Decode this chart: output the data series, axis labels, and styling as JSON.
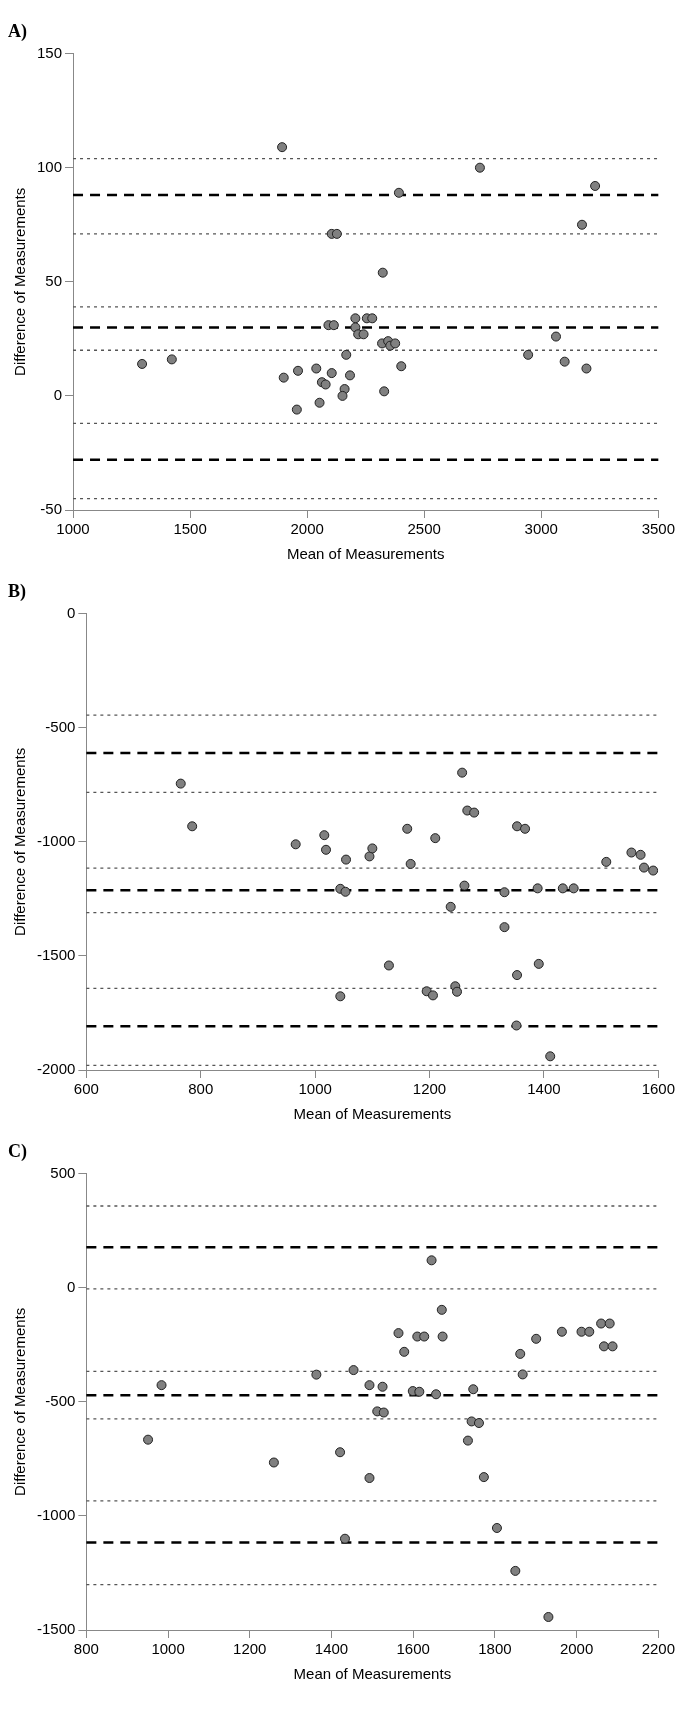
{
  "chart_data": [
    {
      "type": "scatter",
      "title": "A)",
      "xlabel": "Mean of Measurements",
      "ylabel": "Difference of Measurements",
      "xlim": [
        1000,
        3500
      ],
      "xticks": [
        1000,
        1500,
        2000,
        2500,
        3000,
        3500
      ],
      "ylim": [
        -50,
        150
      ],
      "yticks": [
        -50,
        0,
        50,
        100,
        150
      ],
      "grid": false,
      "legend": false,
      "marker": "circle",
      "series": [
        {
          "color": "#808080",
          "x": [
            1893,
            2738,
            2392,
            3230,
            3174,
            2105,
            2127,
            2323,
            2206,
            2255,
            2278,
            2091,
            2114,
            2206,
            2218,
            2241,
            2320,
            2346,
            2355,
            2376,
            3063,
            2167,
            2944,
            1295,
            1422,
            2402,
            3100,
            3193,
            1961,
            1900,
            2039,
            2105,
            2183,
            2063,
            2079,
            2160,
            2151,
            2329,
            2053,
            1956
          ],
          "values": [
            109,
            100,
            89,
            92,
            75,
            71,
            71,
            54,
            34,
            34,
            34,
            31,
            31,
            30,
            27,
            27,
            23,
            24,
            22,
            23,
            26,
            18,
            18,
            14,
            16,
            13,
            15,
            12,
            11,
            8,
            12,
            10,
            9,
            6,
            5,
            3,
            0,
            2,
            -3,
            -6
          ]
        }
      ],
      "ref_lines": [
        {
          "axis": "y",
          "value": 104,
          "color": "#555555",
          "line_style": "dotted"
        },
        {
          "axis": "y",
          "value": 88,
          "color": "#000000",
          "line_style": "dashed"
        },
        {
          "axis": "y",
          "value": 71,
          "color": "#555555",
          "line_style": "dotted"
        },
        {
          "axis": "y",
          "value": 39,
          "color": "#555555",
          "line_style": "dotted"
        },
        {
          "axis": "y",
          "value": 30,
          "color": "#000000",
          "line_style": "dashed"
        },
        {
          "axis": "y",
          "value": 20,
          "color": "#555555",
          "line_style": "dotted"
        },
        {
          "axis": "y",
          "value": -12,
          "color": "#555555",
          "line_style": "dotted"
        },
        {
          "axis": "y",
          "value": -28,
          "color": "#000000",
          "line_style": "dashed"
        },
        {
          "axis": "y",
          "value": -45,
          "color": "#555555",
          "line_style": "dotted"
        }
      ]
    },
    {
      "type": "scatter",
      "title": "B)",
      "xlabel": "Mean of Measurements",
      "ylabel": "Difference of Measurements",
      "xlim": [
        600,
        1600
      ],
      "xticks": [
        600,
        800,
        1000,
        1200,
        1400,
        1600
      ],
      "ylim": [
        -2000,
        0
      ],
      "yticks": [
        -2000,
        -1500,
        -1000,
        -500,
        0
      ],
      "grid": false,
      "legend": false,
      "marker": "circle",
      "series": [
        {
          "color": "#808080",
          "x": [
            765,
            785,
            966,
            1016,
            1019,
            1054,
            1095,
            1100,
            1044,
            1053,
            1044,
            1129,
            1161,
            1167,
            1210,
            1195,
            1206,
            1237,
            1245,
            1248,
            1257,
            1261,
            1266,
            1278,
            1331,
            1331,
            1353,
            1367,
            1353,
            1352,
            1389,
            1391,
            1411,
            1433,
            1452,
            1509,
            1553,
            1569,
            1575,
            1591
          ],
          "values": [
            -745,
            -932,
            -1011,
            -971,
            -1035,
            -1078,
            -1064,
            -1029,
            -1206,
            -1219,
            -1677,
            -1542,
            -943,
            -1097,
            -984,
            -1655,
            -1673,
            -1285,
            -1633,
            -1657,
            -697,
            -1192,
            -863,
            -872,
            -1221,
            -1374,
            -932,
            -943,
            -1584,
            -1805,
            -1204,
            -1535,
            -1940,
            -1204,
            -1204,
            -1088,
            -1047,
            -1057,
            -1113,
            -1126
          ]
        }
      ],
      "ref_lines": [
        {
          "axis": "y",
          "value": -445,
          "color": "#555555",
          "line_style": "dotted"
        },
        {
          "axis": "y",
          "value": -611,
          "color": "#000000",
          "line_style": "dashed"
        },
        {
          "axis": "y",
          "value": -783,
          "color": "#555555",
          "line_style": "dotted"
        },
        {
          "axis": "y",
          "value": -1115,
          "color": "#555555",
          "line_style": "dotted"
        },
        {
          "axis": "y",
          "value": -1212,
          "color": "#000000",
          "line_style": "dashed"
        },
        {
          "axis": "y",
          "value": -1310,
          "color": "#555555",
          "line_style": "dotted"
        },
        {
          "axis": "y",
          "value": -1642,
          "color": "#555555",
          "line_style": "dotted"
        },
        {
          "axis": "y",
          "value": -1808,
          "color": "#000000",
          "line_style": "dashed"
        },
        {
          "axis": "y",
          "value": -1980,
          "color": "#555555",
          "line_style": "dotted"
        }
      ]
    },
    {
      "type": "scatter",
      "title": "C)",
      "xlabel": "Mean of Measurements",
      "ylabel": "Difference of Measurements",
      "xlim": [
        800,
        2200
      ],
      "xticks": [
        800,
        1000,
        1200,
        1400,
        1600,
        1800,
        2000,
        2200
      ],
      "ylim": [
        -1500,
        500
      ],
      "yticks": [
        -1500,
        -1000,
        -500,
        0,
        500
      ],
      "grid": false,
      "legend": false,
      "marker": "circle",
      "series": [
        {
          "color": "#808080",
          "x": [
            951,
            984,
            1259,
            1363,
            1421,
            1433,
            1454,
            1493,
            1493,
            1512,
            1528,
            1525,
            1564,
            1578,
            1599,
            1615,
            1610,
            1627,
            1645,
            1656,
            1670,
            1672,
            1734,
            1747,
            1743,
            1761,
            1773,
            1805,
            1850,
            1862,
            1868,
            1901,
            1931,
            1964,
            2012,
            2031,
            2060,
            2081,
            2067,
            2088
          ],
          "values": [
            -666,
            -427,
            -766,
            -381,
            -721,
            -1100,
            -361,
            -427,
            -834,
            -542,
            -547,
            -434,
            -199,
            -281,
            -453,
            -456,
            -214,
            -214,
            120,
            -467,
            -97,
            -214,
            -670,
            -445,
            -586,
            -593,
            -830,
            -1053,
            -1241,
            -290,
            -380,
            -224,
            -1443,
            -193,
            -193,
            -193,
            -157,
            -157,
            -257,
            -257
          ]
        }
      ],
      "ref_lines": [
        {
          "axis": "y",
          "value": 358,
          "color": "#555555",
          "line_style": "dotted"
        },
        {
          "axis": "y",
          "value": 177,
          "color": "#000000",
          "line_style": "dashed"
        },
        {
          "axis": "y",
          "value": -5,
          "color": "#555555",
          "line_style": "dotted"
        },
        {
          "axis": "y",
          "value": -367,
          "color": "#555555",
          "line_style": "dotted"
        },
        {
          "axis": "y",
          "value": -471,
          "color": "#000000",
          "line_style": "dashed"
        },
        {
          "axis": "y",
          "value": -575,
          "color": "#555555",
          "line_style": "dotted"
        },
        {
          "axis": "y",
          "value": -934,
          "color": "#555555",
          "line_style": "dotted"
        },
        {
          "axis": "y",
          "value": -1117,
          "color": "#000000",
          "line_style": "dashed"
        },
        {
          "axis": "y",
          "value": -1301,
          "color": "#555555",
          "line_style": "dotted"
        }
      ]
    }
  ]
}
